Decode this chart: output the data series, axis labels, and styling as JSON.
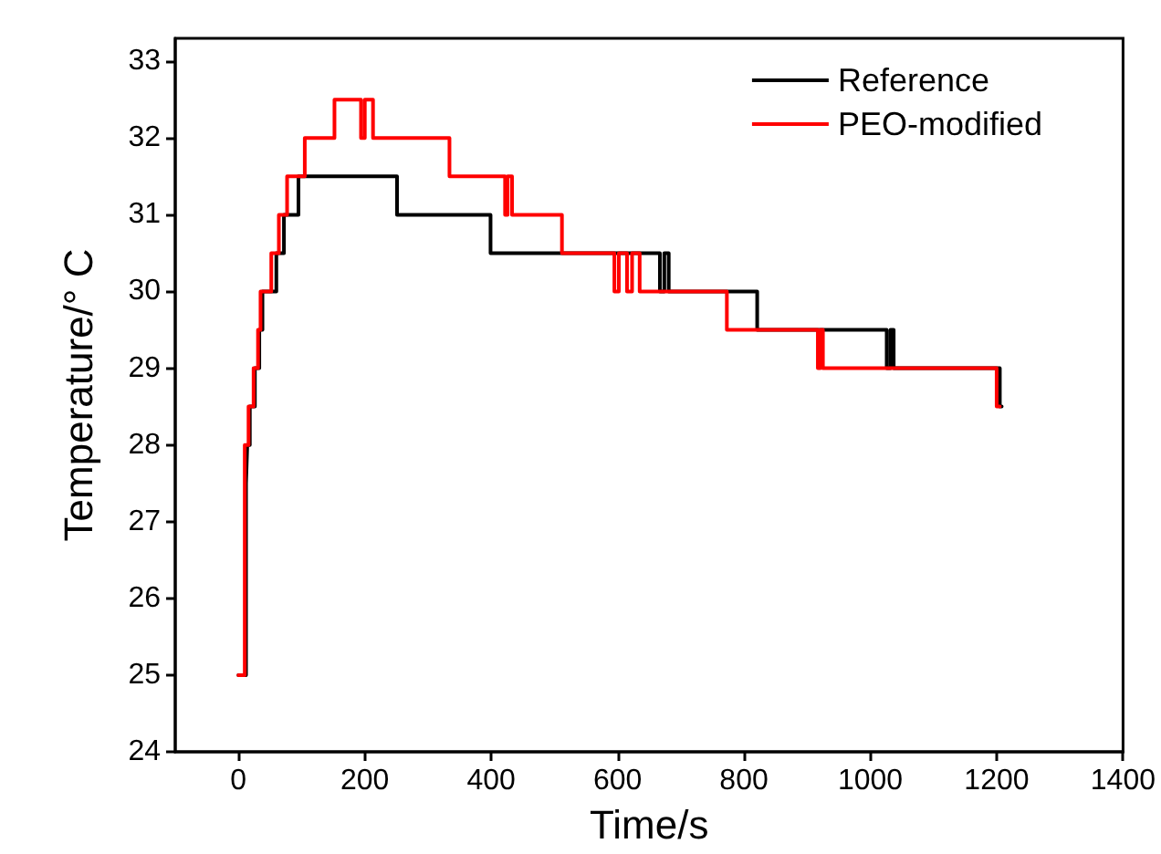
{
  "chart_data": {
    "type": "step",
    "xlabel": "Time/s",
    "ylabel": "Temperature/° C",
    "xlim": [
      -100,
      1400
    ],
    "xticks": [
      0,
      200,
      400,
      600,
      800,
      1000,
      1200,
      1400
    ],
    "ylim": [
      24,
      33.3
    ],
    "yticks": [
      24,
      25,
      26,
      27,
      28,
      29,
      30,
      31,
      32,
      33
    ],
    "grid": false,
    "legend": "top right",
    "marker": "none",
    "line_style": "solid",
    "series": [
      {
        "name": "Reference",
        "color": "#000000",
        "x": [
          0,
          12,
          14,
          18,
          26,
          33,
          38,
          60,
          72,
          95,
          251,
          399,
          667,
          674,
          681,
          821,
          1026,
          1032,
          1037,
          1205,
          1208
        ],
        "values": [
          25,
          27.5,
          28,
          28.5,
          29,
          29.5,
          30,
          30.5,
          31,
          31.5,
          31,
          30.5,
          30,
          30.5,
          30,
          29.5,
          29,
          29.5,
          29,
          28.5,
          28.5
        ]
      },
      {
        "name": "PEO-modified",
        "color": "#ff0000",
        "x": [
          0,
          10,
          16,
          24,
          31,
          35,
          52,
          64,
          77,
          105,
          152,
          194,
          200,
          213,
          334,
          422,
          426,
          433,
          512,
          595,
          602,
          615,
          623,
          635,
          773,
          917,
          921,
          925,
          1200,
          1205
        ],
        "values": [
          25,
          28,
          28.5,
          29,
          29.5,
          30,
          30.5,
          31,
          31.5,
          32,
          32.5,
          32,
          32.5,
          32,
          31.5,
          31,
          31.5,
          31,
          30.5,
          30,
          30.5,
          30,
          30.5,
          30,
          29.5,
          29,
          29.5,
          29,
          28.5,
          28.5
        ]
      }
    ]
  }
}
